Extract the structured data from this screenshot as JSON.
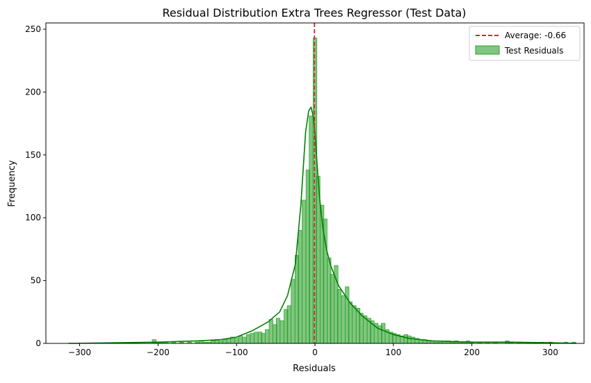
{
  "chart_data": {
    "type": "histogram",
    "title": "Residual Distribution Extra Trees Regressor (Test Data)",
    "xlabel": "Residuals",
    "ylabel": "Frequency",
    "xlim": [
      -343,
      343
    ],
    "ylim": [
      0,
      255
    ],
    "xticks": [
      -300,
      -200,
      -100,
      0,
      100,
      200,
      300
    ],
    "yticks": [
      0,
      50,
      100,
      150,
      200,
      250
    ],
    "grid": false,
    "legend_position": "top-right",
    "bin_start": -314,
    "bin_width": 4.82,
    "bar_color": "#2ca02c",
    "kde_color": "#008000",
    "mean_line": {
      "value": -0.66,
      "label": "Average: -0.66",
      "color": "#d62728",
      "style": "dashed"
    },
    "series": [
      {
        "name": "Test Residuals",
        "kind": "bars"
      }
    ],
    "bins": [
      {
        "x": -205,
        "y": 3
      },
      {
        "x": -200,
        "y": 1
      },
      {
        "x": -195,
        "y": 1
      },
      {
        "x": -190,
        "y": 1
      },
      {
        "x": -180,
        "y": 1
      },
      {
        "x": -170,
        "y": 1
      },
      {
        "x": -160,
        "y": 1
      },
      {
        "x": -150,
        "y": 1
      },
      {
        "x": -145,
        "y": 2
      },
      {
        "x": -140,
        "y": 1
      },
      {
        "x": -135,
        "y": 1
      },
      {
        "x": -130,
        "y": 2
      },
      {
        "x": -125,
        "y": 3
      },
      {
        "x": -120,
        "y": 2
      },
      {
        "x": -115,
        "y": 3
      },
      {
        "x": -110,
        "y": 4
      },
      {
        "x": -105,
        "y": 5
      },
      {
        "x": -100,
        "y": 4
      },
      {
        "x": -95,
        "y": 6
      },
      {
        "x": -90,
        "y": 5
      },
      {
        "x": -85,
        "y": 7
      },
      {
        "x": -80,
        "y": 8
      },
      {
        "x": -75,
        "y": 9
      },
      {
        "x": -70,
        "y": 9
      },
      {
        "x": -66,
        "y": 8
      },
      {
        "x": -61,
        "y": 11
      },
      {
        "x": -56,
        "y": 19
      },
      {
        "x": -51,
        "y": 15
      },
      {
        "x": -47,
        "y": 20
      },
      {
        "x": -42,
        "y": 18
      },
      {
        "x": -37,
        "y": 27
      },
      {
        "x": -33,
        "y": 30
      },
      {
        "x": -28,
        "y": 51
      },
      {
        "x": -23,
        "y": 70
      },
      {
        "x": -19,
        "y": 90
      },
      {
        "x": -14,
        "y": 114
      },
      {
        "x": -9,
        "y": 138
      },
      {
        "x": -5,
        "y": 181
      },
      {
        "x": 0,
        "y": 243
      },
      {
        "x": 4,
        "y": 133
      },
      {
        "x": 9,
        "y": 110
      },
      {
        "x": 13,
        "y": 99
      },
      {
        "x": 18,
        "y": 68
      },
      {
        "x": 22,
        "y": 55
      },
      {
        "x": 27,
        "y": 62
      },
      {
        "x": 31,
        "y": 43
      },
      {
        "x": 36,
        "y": 38
      },
      {
        "x": 41,
        "y": 45
      },
      {
        "x": 45,
        "y": 33
      },
      {
        "x": 50,
        "y": 30
      },
      {
        "x": 55,
        "y": 28
      },
      {
        "x": 59,
        "y": 24
      },
      {
        "x": 64,
        "y": 22
      },
      {
        "x": 69,
        "y": 20
      },
      {
        "x": 73,
        "y": 18
      },
      {
        "x": 78,
        "y": 16
      },
      {
        "x": 83,
        "y": 14
      },
      {
        "x": 87,
        "y": 16
      },
      {
        "x": 92,
        "y": 11
      },
      {
        "x": 97,
        "y": 9
      },
      {
        "x": 101,
        "y": 8
      },
      {
        "x": 106,
        "y": 7
      },
      {
        "x": 111,
        "y": 6
      },
      {
        "x": 116,
        "y": 7
      },
      {
        "x": 120,
        "y": 6
      },
      {
        "x": 125,
        "y": 5
      },
      {
        "x": 130,
        "y": 4
      },
      {
        "x": 135,
        "y": 3
      },
      {
        "x": 140,
        "y": 3
      },
      {
        "x": 145,
        "y": 2
      },
      {
        "x": 150,
        "y": 2
      },
      {
        "x": 155,
        "y": 1
      },
      {
        "x": 160,
        "y": 1
      },
      {
        "x": 165,
        "y": 2
      },
      {
        "x": 170,
        "y": 2
      },
      {
        "x": 175,
        "y": 1
      },
      {
        "x": 180,
        "y": 2
      },
      {
        "x": 185,
        "y": 1
      },
      {
        "x": 190,
        "y": 1
      },
      {
        "x": 195,
        "y": 2
      },
      {
        "x": 200,
        "y": 1
      },
      {
        "x": 210,
        "y": 1
      },
      {
        "x": 220,
        "y": 1
      },
      {
        "x": 230,
        "y": 1
      },
      {
        "x": 245,
        "y": 2
      },
      {
        "x": 250,
        "y": 1
      },
      {
        "x": 260,
        "y": 1
      },
      {
        "x": 290,
        "y": 1
      },
      {
        "x": 300,
        "y": 1
      },
      {
        "x": 320,
        "y": 1
      },
      {
        "x": 330,
        "y": 1
      }
    ],
    "kde": {
      "x": [
        -314,
        -250,
        -200,
        -150,
        -120,
        -100,
        -80,
        -60,
        -45,
        -35,
        -25,
        -18,
        -12,
        -8,
        -5,
        -2,
        0,
        3,
        6,
        10,
        15,
        20,
        30,
        45,
        60,
        80,
        100,
        120,
        150,
        200,
        250,
        300,
        333
      ],
      "y": [
        0,
        0.5,
        1,
        2,
        3,
        5,
        10,
        17,
        25,
        38,
        63,
        110,
        168,
        185,
        188,
        180,
        168,
        140,
        115,
        92,
        74,
        62,
        46,
        32,
        22,
        12,
        7,
        4,
        2,
        1,
        1,
        0.5,
        0
      ]
    }
  }
}
